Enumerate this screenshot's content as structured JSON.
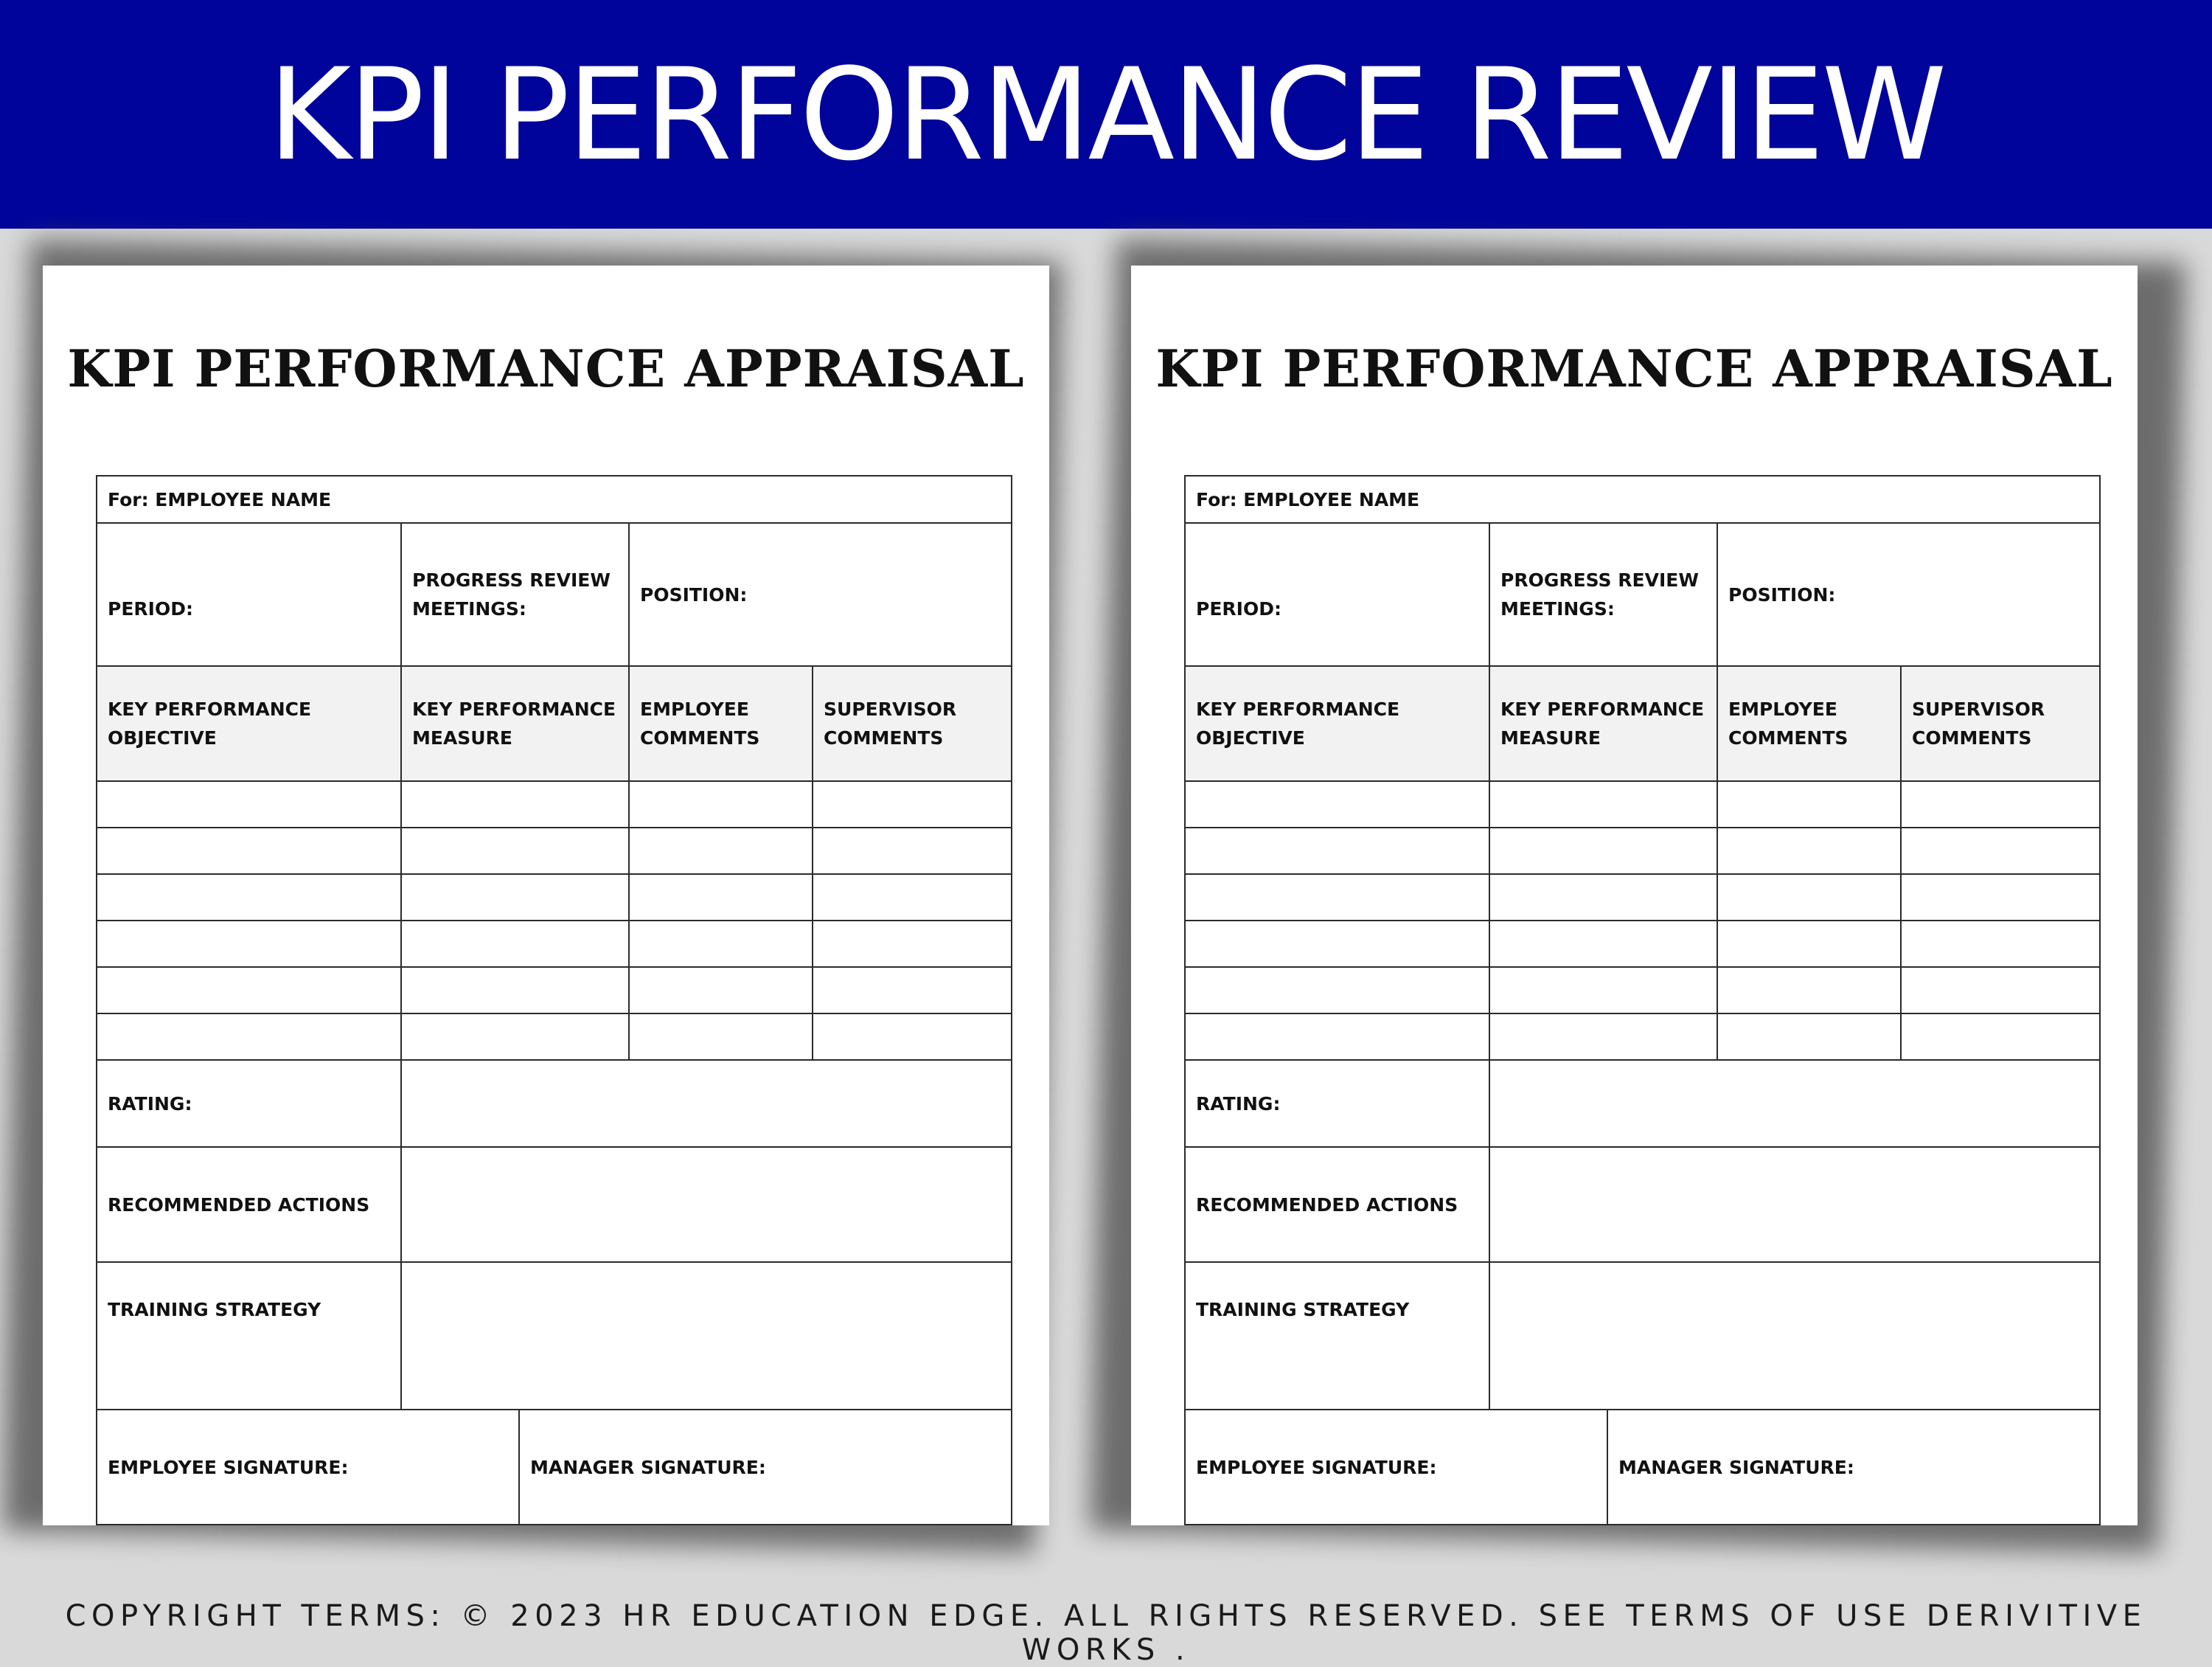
{
  "banner": {
    "title": "KPI PERFORMANCE REVIEW"
  },
  "forms": [
    {
      "title": "KPI PERFORMANCE APPRAISAL",
      "employee_name": "For: EMPLOYEE NAME",
      "period": "PERIOD:",
      "progress_review": "PROGRESS REVIEW MEETINGS:",
      "position": "POSITION:",
      "columns": [
        "KEY PERFORMANCE OBJECTIVE",
        "KEY PERFORMANCE MEASURE",
        "EMPLOYEE COMMENTS",
        "SUPERVISOR COMMENTS"
      ],
      "rating": "RATING:",
      "recommended_actions": "RECOMMENDED ACTIONS",
      "training_strategy": "TRAINING STRATEGY",
      "employee_signature": "EMPLOYEE SIGNATURE:",
      "manager_signature": "MANAGER SIGNATURE:"
    },
    {
      "title": "KPI PERFORMANCE APPRAISAL",
      "employee_name": "For: EMPLOYEE NAME",
      "period": "PERIOD:",
      "progress_review": "PROGRESS REVIEW MEETINGS:",
      "position": "POSITION:",
      "columns": [
        "KEY PERFORMANCE OBJECTIVE",
        "KEY PERFORMANCE MEASURE",
        "EMPLOYEE COMMENTS",
        "SUPERVISOR COMMENTS"
      ],
      "rating": "RATING:",
      "recommended_actions": "RECOMMENDED ACTIONS",
      "training_strategy": "TRAINING STRATEGY",
      "employee_signature": "EMPLOYEE SIGNATURE:",
      "manager_signature": "MANAGER SIGNATURE:"
    }
  ],
  "footer": {
    "copyright": "COPYRIGHT TERMS: © 2023 HR EDUCATION EDGE. ALL RIGHTS RESERVED. SEE TERMS OF USE DERIVITIVE WORKS ."
  },
  "colors": {
    "banner": "#00049a",
    "background": "#d9d9d9",
    "header_cell": "#f2f2f2"
  }
}
